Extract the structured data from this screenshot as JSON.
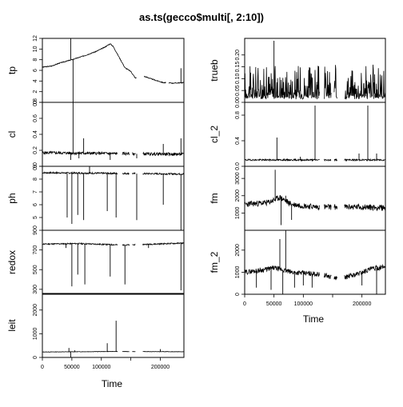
{
  "title": "as.ts(gecco$multi[, 2:10])",
  "xlabel": "Time",
  "colors": {
    "line": "#000000",
    "frame": "#000000",
    "background": "#ffffff"
  },
  "chart_data": {
    "type": "line",
    "title": "as.ts(gecco$multi[, 2:10])",
    "xlabel": "Time",
    "xlim": [
      0,
      240000
    ],
    "x_ticks": [
      0,
      50000,
      100000,
      150000,
      200000
    ],
    "x_tick_labels": [
      "0",
      "50000",
      "100000",
      "",
      "200000"
    ],
    "series": [
      {
        "name": "tp",
        "ylim": [
          0,
          12
        ],
        "y_ticks": [
          0,
          2,
          4,
          6,
          8,
          10,
          12
        ],
        "y_tick_labels": [
          "0",
          "2",
          "4",
          "6",
          "8",
          "10",
          "12"
        ],
        "style": "drift",
        "points": [
          [
            0,
            6.6
          ],
          [
            15000,
            6.8
          ],
          [
            30000,
            7.4
          ],
          [
            50000,
            8.0
          ],
          [
            70000,
            8.7
          ],
          [
            90000,
            9.5
          ],
          [
            105000,
            10.3
          ],
          [
            115000,
            11.0
          ],
          [
            120000,
            10.5
          ],
          [
            130000,
            8.5
          ],
          [
            140000,
            6.5
          ],
          [
            150000,
            5.8
          ],
          [
            158000,
            4.5
          ],
          [
            162000,
            5.0
          ],
          [
            175000,
            4.8
          ],
          [
            190000,
            4.2
          ],
          [
            205000,
            3.7
          ],
          [
            220000,
            3.6
          ],
          [
            240000,
            3.7
          ]
        ],
        "gaps": [
          [
            160000,
            172000
          ],
          [
            210000,
            214000
          ]
        ],
        "spikes": [
          [
            48000,
            12
          ],
          [
            52000,
            0
          ],
          [
            235000,
            6.4
          ]
        ],
        "noise": 0.08,
        "seed": 3
      },
      {
        "name": "cl",
        "ylim": [
          0,
          0.8
        ],
        "y_ticks": [
          0,
          0.2,
          0.4,
          0.6,
          0.8
        ],
        "y_tick_labels": [
          "0.0",
          "0.2",
          "0.4",
          "0.6",
          "0.8"
        ],
        "style": "noisy",
        "points": [
          [
            0,
            0.17
          ],
          [
            240000,
            0.15
          ]
        ],
        "gaps": [
          [
            128000,
            135000
          ],
          [
            148000,
            152000
          ],
          [
            158000,
            170000
          ]
        ],
        "spikes": [
          [
            48000,
            0.08
          ],
          [
            52000,
            0.8
          ],
          [
            62000,
            0.1
          ],
          [
            70000,
            0.35
          ],
          [
            115000,
            0.08
          ],
          [
            160000,
            0.1
          ],
          [
            205000,
            0.28
          ],
          [
            235000,
            0.35
          ]
        ],
        "noise": 0.018,
        "seed": 5
      },
      {
        "name": "ph",
        "ylim": [
          4,
          9
        ],
        "y_ticks": [
          5,
          6,
          7,
          8,
          9
        ],
        "y_tick_labels": [
          "5",
          "6",
          "7",
          "8",
          "9"
        ],
        "style": "noisy",
        "points": [
          [
            0,
            8.5
          ],
          [
            240000,
            8.4
          ]
        ],
        "gaps": [
          [
            128000,
            135000
          ],
          [
            148000,
            152000
          ],
          [
            158000,
            170000
          ]
        ],
        "spikes": [
          [
            42000,
            5.0
          ],
          [
            50000,
            4.5
          ],
          [
            60000,
            5.2
          ],
          [
            70000,
            4.8
          ],
          [
            80000,
            9.0
          ],
          [
            110000,
            5.5
          ],
          [
            125000,
            5.0
          ],
          [
            160000,
            4.8
          ],
          [
            205000,
            6.0
          ],
          [
            235000,
            4.0
          ]
        ],
        "noise": 0.06,
        "seed": 7
      },
      {
        "name": "redox",
        "ylim": [
          250,
          900
        ],
        "y_ticks": [
          300,
          500,
          700,
          900
        ],
        "y_tick_labels": [
          "300",
          "500",
          "700",
          "900"
        ],
        "style": "noisy",
        "points": [
          [
            0,
            760
          ],
          [
            60000,
            765
          ],
          [
            140000,
            750
          ],
          [
            240000,
            770
          ]
        ],
        "gaps": [
          [
            128000,
            135000
          ],
          [
            148000,
            152000
          ],
          [
            158000,
            170000
          ]
        ],
        "spikes": [
          [
            40000,
            720
          ],
          [
            50000,
            330
          ],
          [
            60000,
            450
          ],
          [
            72000,
            350
          ],
          [
            115000,
            430
          ],
          [
            140000,
            350
          ],
          [
            180000,
            720
          ],
          [
            235000,
            290
          ]
        ],
        "noise": 6,
        "seed": 11
      },
      {
        "name": "leit",
        "ylim": [
          0,
          2700
        ],
        "y_ticks": [
          0,
          1000,
          2000
        ],
        "y_tick_labels": [
          "0",
          "1000",
          "2000"
        ],
        "style": "flat",
        "points": [
          [
            0,
            230
          ],
          [
            120000,
            250
          ],
          [
            240000,
            240
          ]
        ],
        "gaps": [
          [
            128000,
            135000
          ],
          [
            148000,
            152000
          ],
          [
            158000,
            170000
          ]
        ],
        "spikes": [
          [
            45000,
            400
          ],
          [
            48000,
            0
          ],
          [
            55000,
            300
          ],
          [
            110000,
            600
          ],
          [
            125000,
            1550
          ],
          [
            200000,
            350
          ],
          [
            240000,
            2700
          ]
        ],
        "noise": 8,
        "seed": 13
      },
      {
        "name": "trueb",
        "ylim": [
          0,
          0.27
        ],
        "y_ticks": [
          0,
          0.05,
          0.1,
          0.15,
          0.2
        ],
        "y_tick_labels": [
          "0.00",
          "0.05",
          "0.10",
          "0.15",
          "0.20"
        ],
        "style": "bursty",
        "points": [
          [
            0,
            0.02
          ],
          [
            240000,
            0.02
          ]
        ],
        "gaps": [
          [
            128000,
            135000
          ],
          [
            148000,
            152000
          ],
          [
            158000,
            170000
          ]
        ],
        "spikes": [
          [
            50000,
            0.26
          ]
        ],
        "noise": 0.015,
        "seed": 17
      },
      {
        "name": "cl_2",
        "ylim": [
          0,
          1.0
        ],
        "y_ticks": [
          0,
          0.4,
          0.8
        ],
        "y_tick_labels": [
          "0.0",
          "0.4",
          "0.8"
        ],
        "style": "noisy",
        "points": [
          [
            0,
            0.1
          ],
          [
            240000,
            0.1
          ]
        ],
        "gaps": [
          [
            128000,
            135000
          ],
          [
            148000,
            152000
          ],
          [
            158000,
            170000
          ]
        ],
        "spikes": [
          [
            55000,
            0.45
          ],
          [
            95000,
            0.15
          ],
          [
            120000,
            0.95
          ],
          [
            195000,
            0.2
          ],
          [
            210000,
            0.95
          ],
          [
            225000,
            0.2
          ]
        ],
        "noise": 0.012,
        "seed": 19
      },
      {
        "name": "fm",
        "ylim": [
          0,
          3700
        ],
        "y_ticks": [
          1000,
          2000,
          3000
        ],
        "y_tick_labels": [
          "1000",
          "2000",
          "3000"
        ],
        "style": "noisy",
        "points": [
          [
            0,
            1500
          ],
          [
            40000,
            1600
          ],
          [
            60000,
            1900
          ],
          [
            80000,
            1500
          ],
          [
            120000,
            1350
          ],
          [
            200000,
            1350
          ],
          [
            240000,
            1300
          ]
        ],
        "gaps": [
          [
            128000,
            135000
          ],
          [
            148000,
            152000
          ],
          [
            158000,
            170000
          ]
        ],
        "spikes": [
          [
            52000,
            3500
          ],
          [
            62000,
            300
          ],
          [
            70000,
            2000
          ],
          [
            80000,
            600
          ],
          [
            240000,
            800
          ]
        ],
        "noise": 170,
        "seed": 23
      },
      {
        "name": "fm_2",
        "ylim": [
          0,
          2900
        ],
        "y_ticks": [
          0,
          1000,
          2000
        ],
        "y_tick_labels": [
          "0",
          "1000",
          "2000"
        ],
        "style": "noisy",
        "points": [
          [
            0,
            1000
          ],
          [
            30000,
            1100
          ],
          [
            50000,
            1200
          ],
          [
            80000,
            1000
          ],
          [
            130000,
            900
          ],
          [
            160000,
            700
          ],
          [
            190000,
            900
          ],
          [
            215000,
            1150
          ],
          [
            240000,
            1250
          ]
        ],
        "gaps": [
          [
            128000,
            135000
          ],
          [
            148000,
            152000
          ],
          [
            158000,
            170000
          ]
        ],
        "spikes": [
          [
            20000,
            300
          ],
          [
            45000,
            200
          ],
          [
            60000,
            2500
          ],
          [
            65000,
            0
          ],
          [
            70000,
            2900
          ],
          [
            85000,
            300
          ],
          [
            100000,
            400
          ],
          [
            115000,
            300
          ],
          [
            200000,
            400
          ],
          [
            225000,
            0
          ]
        ],
        "noise": 110,
        "seed": 29
      }
    ]
  }
}
